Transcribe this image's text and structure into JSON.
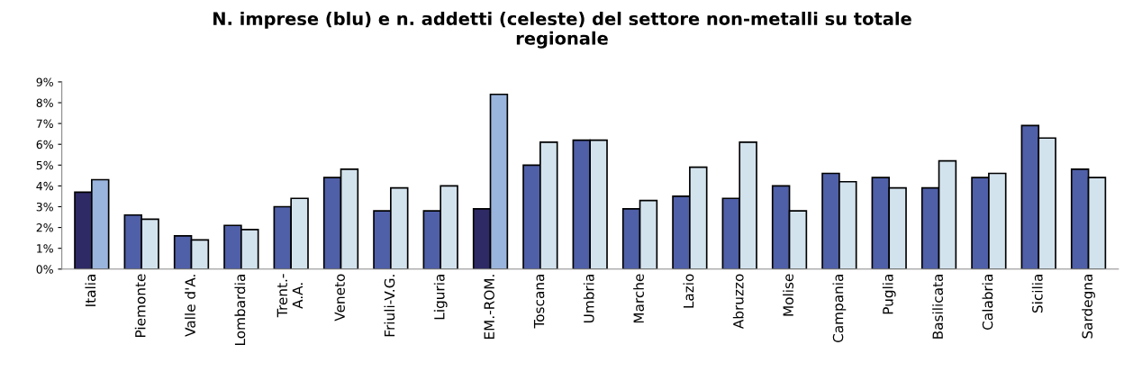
{
  "chart_data": {
    "type": "bar",
    "title": "N. imprese (blu) e n. addetti (celeste) del settore non-metalli su totale\nregionale",
    "categories": [
      "Italia",
      "Piemonte",
      "Valle d'A.",
      "Lombardia",
      "Trent.-\nA.A.",
      "Veneto",
      "Friuli-V.G.",
      "Liguria",
      "EM.-ROM.",
      "Toscana",
      "Umbria",
      "Marche",
      "Lazio",
      "Abruzzo",
      "Molise",
      "Campania",
      "Puglia",
      "Basilicata",
      "Calabria",
      "Sicilia",
      "Sardegna"
    ],
    "series": [
      {
        "colors": [
          "#2e2a66",
          "#4f5fa8",
          "#4f5fa8",
          "#4f5fa8",
          "#4f5fa8",
          "#4f5fa8",
          "#4f5fa8",
          "#4f5fa8",
          "#2e2a66",
          "#4f5fa8",
          "#4f5fa8",
          "#4f5fa8",
          "#4f5fa8",
          "#4f5fa8",
          "#4f5fa8",
          "#4f5fa8",
          "#4f5fa8",
          "#4f5fa8",
          "#4f5fa8",
          "#4f5fa8",
          "#4f5fa8"
        ],
        "values": [
          3.7,
          2.6,
          1.6,
          2.1,
          3.0,
          4.4,
          2.8,
          2.8,
          2.9,
          5.0,
          6.2,
          2.9,
          3.5,
          3.4,
          4.0,
          4.6,
          4.4,
          3.9,
          4.4,
          6.9,
          4.8
        ]
      },
      {
        "colors": [
          "#9ab5dd",
          "#d3e3ee",
          "#d3e3ee",
          "#d3e3ee",
          "#d3e3ee",
          "#d3e3ee",
          "#d3e3ee",
          "#d3e3ee",
          "#9ab5dd",
          "#d3e3ee",
          "#d3e3ee",
          "#d3e3ee",
          "#d3e3ee",
          "#d3e3ee",
          "#d3e3ee",
          "#d3e3ee",
          "#d3e3ee",
          "#d3e3ee",
          "#d3e3ee",
          "#d3e3ee",
          "#d3e3ee"
        ],
        "values": [
          4.3,
          2.4,
          1.4,
          1.9,
          3.4,
          4.8,
          3.9,
          4.0,
          8.4,
          6.1,
          6.2,
          3.3,
          4.9,
          6.1,
          2.8,
          4.2,
          3.9,
          5.2,
          4.6,
          6.3,
          4.4
        ]
      }
    ],
    "ylim": [
      0,
      9
    ],
    "yticks": [
      {
        "value": 0,
        "label": "0%"
      },
      {
        "value": 1,
        "label": "1%"
      },
      {
        "value": 2,
        "label": "2%"
      },
      {
        "value": 3,
        "label": "3%"
      },
      {
        "value": 4,
        "label": "4%"
      },
      {
        "value": 5,
        "label": "5%"
      },
      {
        "value": 6,
        "label": "6%"
      },
      {
        "value": 7,
        "label": "7%"
      },
      {
        "value": 8,
        "label": "8%"
      },
      {
        "value": 9,
        "label": "9%"
      }
    ],
    "grid": false,
    "legend": false
  }
}
